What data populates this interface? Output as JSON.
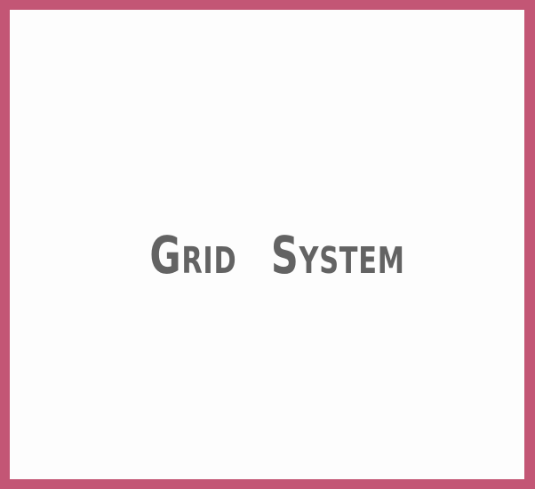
{
  "title": {
    "word_1": "Grid",
    "word_2": "System"
  },
  "colors": {
    "border": "#c35675",
    "background": "#fdfdfd",
    "text": "#636363"
  }
}
